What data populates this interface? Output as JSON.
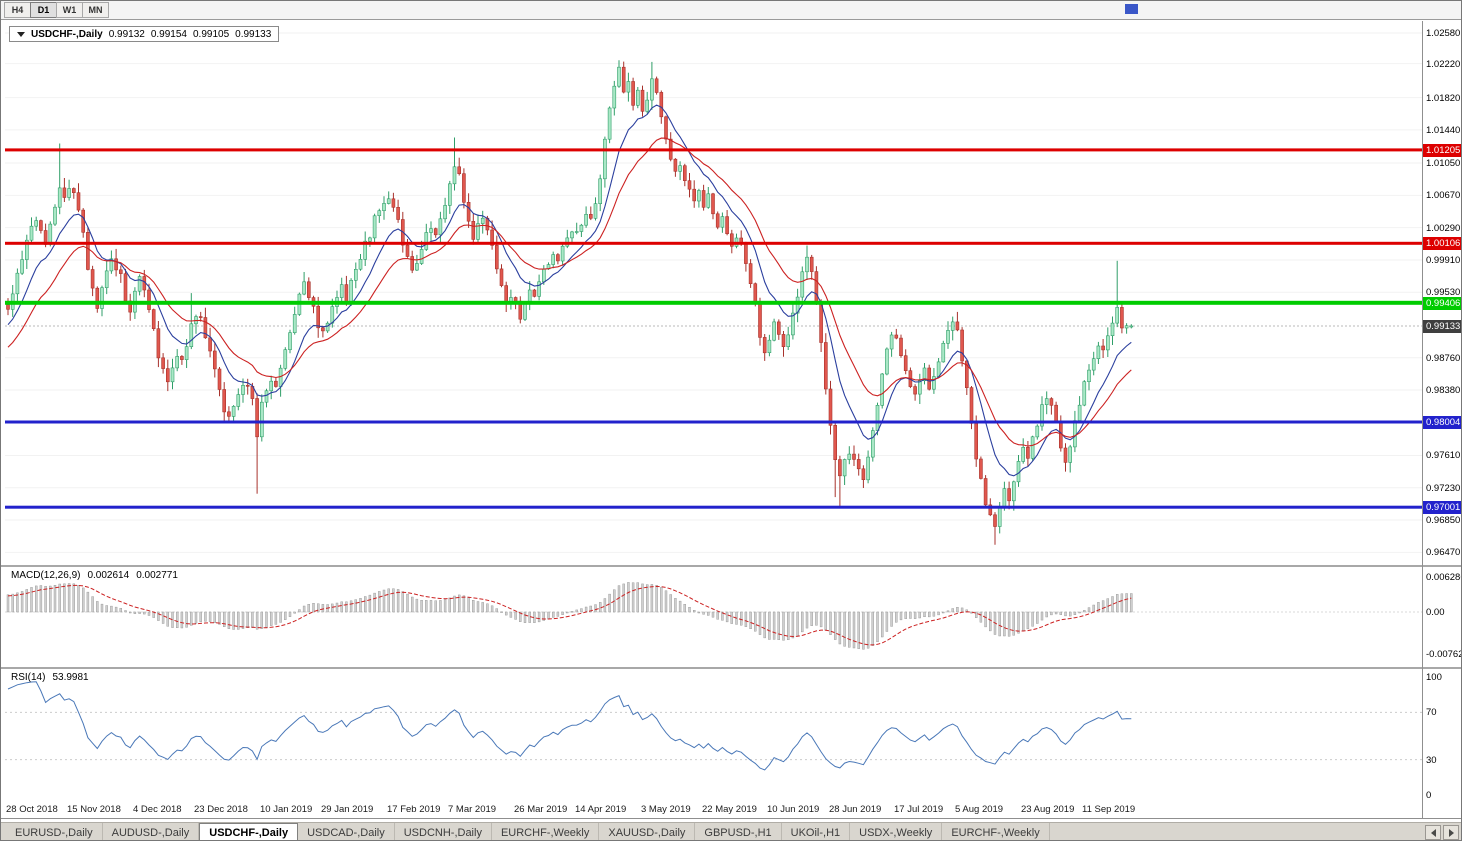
{
  "colors": {
    "up_fill": "#a9e8c6",
    "up_stroke": "#2f9e68",
    "down_fill": "#e0574e",
    "down_stroke": "#a8322c",
    "ma_fast": "#2b3f9e",
    "ma_slow": "#cc2222",
    "macd_bar": "#cfcfcf",
    "macd_bar_stroke": "#8f8f8f",
    "macd_signal": "#cc2222",
    "rsi_line": "#4a78b8",
    "hline_red": "#dd0000",
    "hline_green": "#00cc00",
    "hline_blue": "#2222cc",
    "current_badge_bg": "#3f3f3f",
    "grid": "#f2f2f2",
    "current_line": "#b8b8b8"
  },
  "toolbar": {
    "timeframes": [
      "H4",
      "D1",
      "W1",
      "MN"
    ],
    "active_timeframe": "D1"
  },
  "chart_header": {
    "symbol_title": "USDCHF-,Daily",
    "open": "0.99132",
    "high": "0.99154",
    "low": "0.99105",
    "close": "0.99133"
  },
  "price_axis": {
    "labels": [
      "1.02580",
      "1.02220",
      "1.01820",
      "1.01440",
      "1.01050",
      "1.00670",
      "1.00290",
      "0.99910",
      "0.99530",
      "0.98760",
      "0.98380",
      "0.97610",
      "0.97230",
      "0.96850",
      "0.96470"
    ],
    "current_price": "0.99133"
  },
  "hlines": [
    {
      "price": 1.01205,
      "label": "1.01205",
      "type": "resistance",
      "color": "#dd0000",
      "width": 3
    },
    {
      "price": 1.00106,
      "label": "1.00106",
      "type": "resistance",
      "color": "#dd0000",
      "width": 3
    },
    {
      "price": 0.99406,
      "label": "0.99406",
      "type": "support",
      "color": "#00cc00",
      "width": 4
    },
    {
      "price": 0.98004,
      "label": "0.98004",
      "type": "support",
      "color": "#2222cc",
      "width": 3
    },
    {
      "price": 0.97001,
      "label": "0.97001",
      "type": "support",
      "color": "#2222cc",
      "width": 3
    }
  ],
  "chart_data": {
    "type": "candlestick",
    "symbol": "USDCHF",
    "timeframe": "Daily",
    "title": "USDCHF-,Daily",
    "ohlc_current": {
      "open": 0.99132,
      "high": 0.99154,
      "low": 0.99105,
      "close": 0.99133
    },
    "y_range": [
      0.9647,
      1.0258
    ],
    "bars": 240,
    "close_anchors": [
      [
        0,
        0.9935
      ],
      [
        2,
        0.9975
      ],
      [
        4,
        1.0012
      ],
      [
        6,
        1.0038
      ],
      [
        8,
        1.0015
      ],
      [
        10,
        1.0048
      ],
      [
        11,
        1.007
      ],
      [
        12,
        1.0062
      ],
      [
        13,
        1.008
      ],
      [
        14,
        1.0075
      ],
      [
        15,
        1.0052
      ],
      [
        16,
        1.002
      ],
      [
        17,
        0.9985
      ],
      [
        18,
        0.9955
      ],
      [
        19,
        0.9938
      ],
      [
        20,
        0.9958
      ],
      [
        21,
        0.9978
      ],
      [
        22,
        0.9992
      ],
      [
        24,
        0.9972
      ],
      [
        25,
        0.9945
      ],
      [
        26,
        0.993
      ],
      [
        27,
        0.995
      ],
      [
        28,
        0.9972
      ],
      [
        29,
        0.996
      ],
      [
        30,
        0.9935
      ],
      [
        31,
        0.9908
      ],
      [
        32,
        0.988
      ],
      [
        33,
        0.9858
      ],
      [
        34,
        0.9845
      ],
      [
        35,
        0.9862
      ],
      [
        36,
        0.9878
      ],
      [
        37,
        0.9868
      ],
      [
        38,
        0.9888
      ],
      [
        39,
        0.9912
      ],
      [
        40,
        0.9928
      ],
      [
        41,
        0.992
      ],
      [
        42,
        0.9898
      ],
      [
        43,
        0.9878
      ],
      [
        44,
        0.9858
      ],
      [
        45,
        0.9838
      ],
      [
        46,
        0.9818
      ],
      [
        47,
        0.9805
      ],
      [
        48,
        0.9822
      ],
      [
        49,
        0.9835
      ],
      [
        50,
        0.9848
      ],
      [
        51,
        0.984
      ],
      [
        52,
        0.9822
      ],
      [
        53,
        0.9785
      ],
      [
        54,
        0.9818
      ],
      [
        55,
        0.984
      ],
      [
        56,
        0.9852
      ],
      [
        57,
        0.9845
      ],
      [
        58,
        0.9862
      ],
      [
        59,
        0.988
      ],
      [
        60,
        0.9905
      ],
      [
        61,
        0.9928
      ],
      [
        62,
        0.9948
      ],
      [
        63,
        0.9962
      ],
      [
        64,
        0.995
      ],
      [
        65,
        0.9932
      ],
      [
        66,
        0.9912
      ],
      [
        67,
        0.9902
      ],
      [
        68,
        0.9918
      ],
      [
        69,
        0.9932
      ],
      [
        70,
        0.9945
      ],
      [
        71,
        0.9958
      ],
      [
        72,
        0.9948
      ],
      [
        73,
        0.9962
      ],
      [
        74,
        0.9978
      ],
      [
        75,
        0.9992
      ],
      [
        76,
        1.0008
      ],
      [
        77,
        1.0022
      ],
      [
        78,
        1.0038
      ],
      [
        79,
        1.0052
      ],
      [
        80,
        1.006
      ],
      [
        81,
        1.0068
      ],
      [
        82,
        1.0055
      ],
      [
        83,
        1.0035
      ],
      [
        84,
        1.0012
      ],
      [
        85,
        0.9992
      ],
      [
        86,
        0.998
      ],
      [
        87,
        0.9992
      ],
      [
        88,
        1.0005
      ],
      [
        89,
        1.0018
      ],
      [
        90,
        1.0028
      ],
      [
        91,
        1.0022
      ],
      [
        92,
        1.0038
      ],
      [
        93,
        1.0055
      ],
      [
        94,
        1.008
      ],
      [
        95,
        1.0105
      ],
      [
        96,
        1.0088
      ],
      [
        97,
        1.006
      ],
      [
        98,
        1.0035
      ],
      [
        99,
        1.0015
      ],
      [
        100,
        1.0028
      ],
      [
        101,
        1.0042
      ],
      [
        102,
        1.0028
      ],
      [
        103,
        1.0008
      ],
      [
        104,
        0.9985
      ],
      [
        105,
        0.9958
      ],
      [
        106,
        0.9938
      ],
      [
        107,
        0.9952
      ],
      [
        108,
        0.9938
      ],
      [
        109,
        0.9925
      ],
      [
        110,
        0.9942
      ],
      [
        111,
        0.9958
      ],
      [
        112,
        0.9945
      ],
      [
        113,
        0.9962
      ],
      [
        114,
        0.9975
      ],
      [
        115,
        0.9988
      ],
      [
        116,
        1.0002
      ],
      [
        117,
        0.9992
      ],
      [
        118,
        1.0005
      ],
      [
        119,
        1.0018
      ],
      [
        120,
        1.003
      ],
      [
        121,
        1.0022
      ],
      [
        122,
        1.0035
      ],
      [
        123,
        1.0048
      ],
      [
        124,
        1.004
      ],
      [
        125,
        1.0055
      ],
      [
        126,
        1.0085
      ],
      [
        127,
        1.013
      ],
      [
        128,
        1.0172
      ],
      [
        129,
        1.02
      ],
      [
        130,
        1.0212
      ],
      [
        131,
        1.0185
      ],
      [
        132,
        1.0205
      ],
      [
        133,
        1.0178
      ],
      [
        134,
        1.0192
      ],
      [
        135,
        1.017
      ],
      [
        136,
        1.0185
      ],
      [
        137,
        1.02
      ],
      [
        138,
        1.0188
      ],
      [
        139,
        1.0158
      ],
      [
        140,
        1.0132
      ],
      [
        141,
        1.0108
      ],
      [
        142,
        1.0092
      ],
      [
        143,
        1.0105
      ],
      [
        144,
        1.0088
      ],
      [
        145,
        1.0072
      ],
      [
        146,
        1.0058
      ],
      [
        147,
        1.0068
      ],
      [
        148,
        1.0052
      ],
      [
        149,
        1.0065
      ],
      [
        150,
        1.0048
      ],
      [
        151,
        1.0032
      ],
      [
        152,
        1.0045
      ],
      [
        153,
        1.0025
      ],
      [
        154,
        1.0008
      ],
      [
        155,
        1.0022
      ],
      [
        156,
        1.0005
      ],
      [
        157,
        0.9988
      ],
      [
        158,
        0.9965
      ],
      [
        159,
        0.9935
      ],
      [
        160,
        0.9905
      ],
      [
        161,
        0.9882
      ],
      [
        162,
        0.9895
      ],
      [
        163,
        0.9915
      ],
      [
        164,
        0.9902
      ],
      [
        165,
        0.9888
      ],
      [
        166,
        0.9905
      ],
      [
        167,
        0.9928
      ],
      [
        168,
        0.9952
      ],
      [
        169,
        0.9975
      ],
      [
        170,
        0.9992
      ],
      [
        171,
        0.9972
      ],
      [
        172,
        0.9935
      ],
      [
        173,
        0.9892
      ],
      [
        174,
        0.9845
      ],
      [
        175,
        0.9798
      ],
      [
        176,
        0.9762
      ],
      [
        177,
        0.9738
      ],
      [
        178,
        0.9752
      ],
      [
        179,
        0.9768
      ],
      [
        180,
        0.9758
      ],
      [
        181,
        0.9745
      ],
      [
        182,
        0.9738
      ],
      [
        183,
        0.9755
      ],
      [
        184,
        0.9785
      ],
      [
        185,
        0.9825
      ],
      [
        186,
        0.9862
      ],
      [
        187,
        0.9888
      ],
      [
        188,
        0.9905
      ],
      [
        189,
        0.9895
      ],
      [
        190,
        0.9878
      ],
      [
        191,
        0.9858
      ],
      [
        192,
        0.9845
      ],
      [
        193,
        0.9832
      ],
      [
        194,
        0.9845
      ],
      [
        195,
        0.9858
      ],
      [
        196,
        0.9842
      ],
      [
        197,
        0.9855
      ],
      [
        198,
        0.9872
      ],
      [
        199,
        0.9892
      ],
      [
        200,
        0.9908
      ],
      [
        201,
        0.9922
      ],
      [
        202,
        0.9905
      ],
      [
        203,
        0.9872
      ],
      [
        204,
        0.9835
      ],
      [
        205,
        0.9798
      ],
      [
        206,
        0.9762
      ],
      [
        207,
        0.9728
      ],
      [
        208,
        0.9705
      ],
      [
        209,
        0.9688
      ],
      [
        210,
        0.9672
      ],
      [
        211,
        0.9695
      ],
      [
        212,
        0.9718
      ],
      [
        213,
        0.9712
      ],
      [
        214,
        0.9732
      ],
      [
        215,
        0.9752
      ],
      [
        216,
        0.9768
      ],
      [
        217,
        0.9758
      ],
      [
        218,
        0.9778
      ],
      [
        219,
        0.9798
      ],
      [
        220,
        0.9815
      ],
      [
        221,
        0.9832
      ],
      [
        222,
        0.982
      ],
      [
        223,
        0.9798
      ],
      [
        224,
        0.9772
      ],
      [
        225,
        0.9758
      ],
      [
        226,
        0.9775
      ],
      [
        227,
        0.9798
      ],
      [
        228,
        0.9822
      ],
      [
        229,
        0.9845
      ],
      [
        230,
        0.9862
      ],
      [
        231,
        0.9878
      ],
      [
        232,
        0.9892
      ],
      [
        233,
        0.9885
      ],
      [
        234,
        0.9898
      ],
      [
        235,
        0.9912
      ],
      [
        236,
        0.9938
      ],
      [
        237,
        0.9915
      ],
      [
        238,
        0.9908
      ],
      [
        239,
        0.99133
      ]
    ],
    "wick_overrides": [
      [
        11,
        "high",
        1.0128
      ],
      [
        39,
        "high",
        0.9952
      ],
      [
        53,
        "low",
        0.9716
      ],
      [
        95,
        "high",
        1.0135
      ],
      [
        130,
        "high",
        1.0226
      ],
      [
        137,
        "high",
        1.0224
      ],
      [
        170,
        "high",
        1.0008
      ],
      [
        176,
        "low",
        0.9712
      ],
      [
        177,
        "low",
        0.97
      ],
      [
        210,
        "low",
        0.9656
      ],
      [
        225,
        "low",
        0.9742
      ],
      [
        236,
        "high",
        0.999
      ]
    ],
    "x_labels": [
      "28 Oct 2018",
      "15 Nov 2018",
      "4 Dec 2018",
      "23 Dec 2018",
      "10 Jan 2019",
      "29 Jan 2019",
      "17 Feb 2019",
      "7 Mar 2019",
      "26 Mar 2019",
      "14 Apr 2019",
      "3 May 2019",
      "22 May 2019",
      "10 Jun 2019",
      "28 Jun 2019",
      "17 Jul 2019",
      "5 Aug 2019",
      "23 Aug 2019",
      "11 Sep 2019"
    ],
    "x_label_bars": [
      0,
      13,
      27,
      40,
      54,
      67,
      81,
      94,
      108,
      121,
      135,
      148,
      162,
      175,
      189,
      202,
      216,
      229
    ],
    "moving_averages": [
      {
        "name": "fast-ma",
        "period": 10,
        "color": "#2b3f9e"
      },
      {
        "name": "slow-ma",
        "period": 21,
        "color": "#cc2222"
      }
    ]
  },
  "macd_panel": {
    "title": "MACD(12,26,9)",
    "value_main": "0.002614",
    "value_signal": "0.002771",
    "axis_labels": [
      "0.006286",
      "0.00",
      "-0.00762"
    ],
    "axis_values": [
      0.006286,
      0,
      -0.00762
    ]
  },
  "rsi_panel": {
    "title": "RSI(14)",
    "value": "53.9981",
    "axis_labels": [
      "100",
      "70",
      "30",
      "0"
    ],
    "axis_values": [
      100,
      70,
      30,
      0
    ],
    "levels": [
      70,
      30
    ]
  },
  "tabs": {
    "items": [
      "EURUSD-,Daily",
      "AUDUSD-,Daily",
      "USDCHF-,Daily",
      "USDCAD-,Daily",
      "USDCNH-,Daily",
      "EURCHF-,Weekly",
      "XAUUSD-,Daily",
      "GBPUSD-,H1",
      "UKOil-,H1",
      "USDX-,Weekly",
      "EURCHF-,Weekly"
    ],
    "active_index": 2
  }
}
